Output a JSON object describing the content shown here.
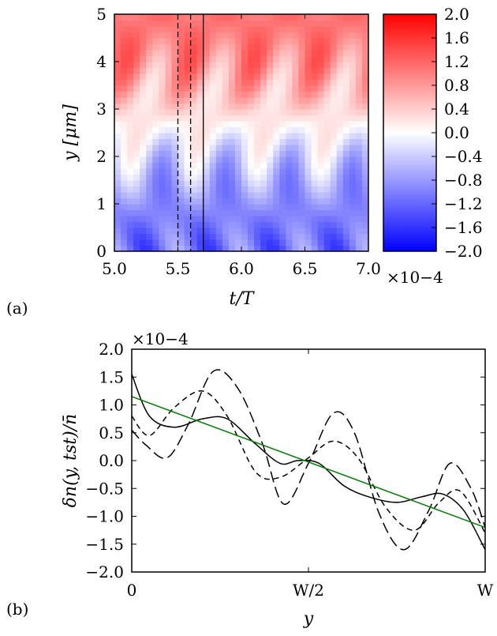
{
  "chart_data": [
    {
      "type": "heatmap",
      "panel_label": "(a)",
      "xlabel": "t/T",
      "ylabel": "y [μm]",
      "xlim": [
        5.0,
        7.0
      ],
      "ylim": [
        0,
        5
      ],
      "x_ticks": [
        "5.0",
        "5.5",
        "6.0",
        "6.5",
        "7.0"
      ],
      "y_ticks": [
        "0",
        "1",
        "2",
        "3",
        "4",
        "5"
      ],
      "vertical_lines": [
        {
          "x": 5.5,
          "style": "dashed"
        },
        {
          "x": 5.6,
          "style": "dashed"
        },
        {
          "x": 5.7,
          "style": "solid"
        }
      ],
      "colorbar": {
        "vmin": -2.0,
        "vmax": 2.0,
        "ticks": [
          "2.0",
          "1.6",
          "1.2",
          "0.8",
          "0.4",
          "0.0",
          "−0.4",
          "−0.8",
          "−1.2",
          "−1.6",
          "−2.0"
        ],
        "scale_label": "×10−4",
        "colormap": [
          "#0000ff",
          "#ffffff",
          "#ff0000"
        ]
      }
    },
    {
      "type": "line",
      "panel_label": "(b)",
      "xlabel": "y",
      "ylabel": "δn(y, tst)/n̄",
      "xlim": [
        0,
        1
      ],
      "ylim": [
        -2.0,
        2.0
      ],
      "x_ticks": [
        "0",
        "W/2",
        "W"
      ],
      "y_ticks": [
        "2.0",
        "1.5",
        "1.0",
        "0.5",
        "0.0",
        "−0.5",
        "−1.0",
        "−1.5",
        "−2.0"
      ],
      "y_scale_label": "×10−4",
      "series": [
        {
          "style": "long-dash",
          "color": "#000000",
          "x": [
            0,
            0.04,
            0.1,
            0.16,
            0.23,
            0.3,
            0.37,
            0.43,
            0.5,
            0.57,
            0.63,
            0.7,
            0.77,
            0.84,
            0.9,
            0.96,
            1.0
          ],
          "y": [
            0.55,
            0.28,
            0.05,
            0.65,
            1.6,
            1.3,
            0.3,
            -0.78,
            -0.05,
            0.85,
            0.5,
            -0.95,
            -1.6,
            -0.9,
            -0.05,
            -0.5,
            -1.2
          ]
        },
        {
          "style": "short-dash",
          "color": "#000000",
          "x": [
            0,
            0.05,
            0.12,
            0.2,
            0.27,
            0.35,
            0.42,
            0.5,
            0.57,
            0.64,
            0.72,
            0.8,
            0.87,
            0.93,
            1.0
          ],
          "y": [
            0.8,
            0.45,
            0.95,
            1.25,
            0.8,
            -0.2,
            -0.3,
            0.05,
            0.35,
            0.05,
            -0.85,
            -1.25,
            -0.75,
            -0.55,
            -1.3
          ]
        },
        {
          "style": "solid",
          "color": "#000000",
          "x": [
            0,
            0.05,
            0.12,
            0.2,
            0.27,
            0.35,
            0.42,
            0.47,
            0.53,
            0.6,
            0.67,
            0.75,
            0.82,
            0.88,
            0.94,
            1.0
          ],
          "y": [
            1.55,
            0.8,
            0.6,
            0.75,
            0.75,
            0.3,
            -0.05,
            0.0,
            -0.05,
            -0.45,
            -0.65,
            -0.75,
            -0.65,
            -0.6,
            -0.9,
            -1.6
          ]
        },
        {
          "style": "solid",
          "color": "#008000",
          "x": [
            0,
            1.0
          ],
          "y": [
            1.15,
            -1.2
          ]
        }
      ]
    }
  ]
}
